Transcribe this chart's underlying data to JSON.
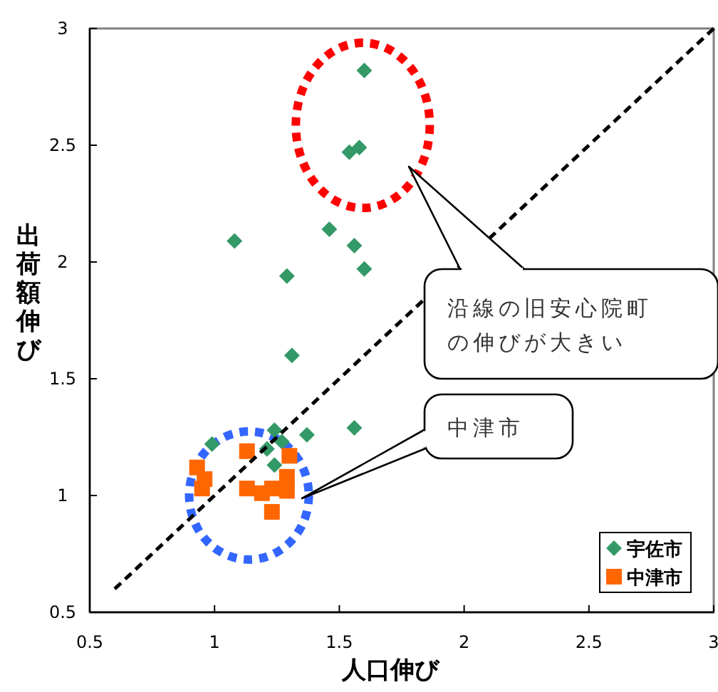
{
  "chart_data": {
    "type": "scatter",
    "xlabel": "人口伸び",
    "ylabel": "出荷額伸び",
    "xlim": [
      0.5,
      3
    ],
    "ylim": [
      0.5,
      3
    ],
    "xticks": [
      0.5,
      1,
      1.5,
      2,
      2.5,
      3
    ],
    "yticks": [
      0.5,
      1,
      1.5,
      2,
      2.5,
      3
    ],
    "grid": false,
    "legend": "bottom right",
    "series": [
      {
        "name": "宇佐市",
        "color": "#339966",
        "marker": "diamond",
        "x": [
          1.6,
          1.54,
          1.58,
          1.08,
          1.46,
          1.56,
          1.29,
          1.6,
          1.31,
          1.56,
          1.37,
          1.24,
          1.27,
          1.21,
          0.99,
          1.24
        ],
        "values": [
          2.82,
          2.47,
          2.49,
          2.09,
          2.14,
          2.07,
          1.94,
          1.97,
          1.6,
          1.29,
          1.26,
          1.28,
          1.23,
          1.2,
          1.22,
          1.13
        ]
      },
      {
        "name": "中津市",
        "color": "#ff6600",
        "marker": "square",
        "x": [
          0.93,
          0.96,
          0.95,
          1.13,
          1.3,
          1.13,
          1.19,
          1.23,
          1.29,
          1.29,
          1.23
        ],
        "values": [
          1.12,
          1.07,
          1.03,
          1.19,
          1.17,
          1.03,
          1.01,
          1.03,
          1.02,
          1.08,
          0.93
        ]
      },
      {
        "type": "line",
        "color": "#000000",
        "line_style": "dashed",
        "marker": "none",
        "x": [
          0.6,
          3
        ],
        "values": [
          0.6,
          3
        ]
      }
    ],
    "annotations": [
      "沿線の旧安心院町の伸びが大きい",
      "中津市"
    ]
  }
}
